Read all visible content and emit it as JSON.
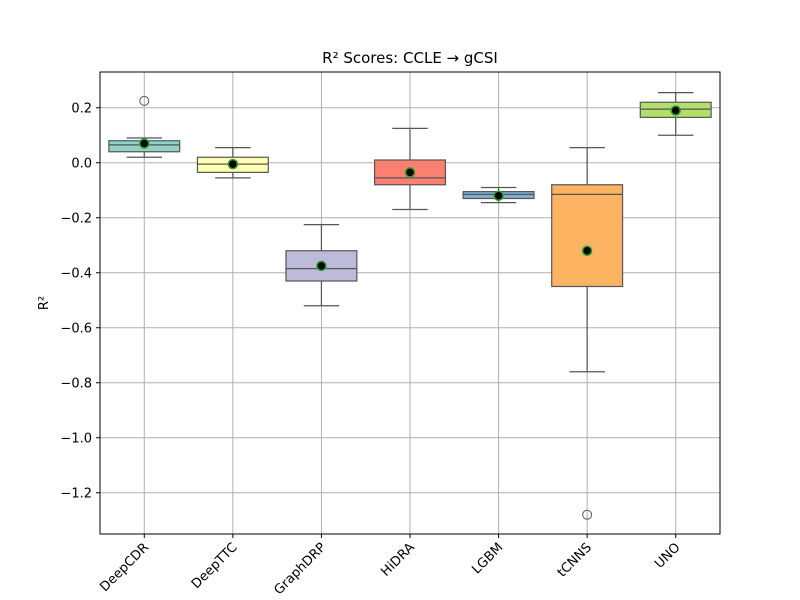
{
  "chart_data": {
    "type": "box",
    "title": "R² Scores: CCLE → gCSI",
    "xlabel": "",
    "ylabel": "R²",
    "ylim": [
      -1.35,
      0.33
    ],
    "yticks": [
      0.2,
      0.0,
      -0.2,
      -0.4,
      -0.6,
      -0.8,
      -1.0,
      -1.2
    ],
    "ytick_labels": [
      "0.2",
      "0.0",
      "−0.2",
      "−0.4",
      "−0.6",
      "−0.8",
      "−1.0",
      "−1.2"
    ],
    "grid": true,
    "categories": [
      "DeepCDR",
      "DeepTTC",
      "GraphDRP",
      "HiDRA",
      "LGBM",
      "tCNNS",
      "UNO"
    ],
    "boxes": [
      {
        "label": "DeepCDR",
        "color": "#8dd3c7",
        "whisker_low": 0.02,
        "q1": 0.04,
        "median": 0.065,
        "q3": 0.08,
        "whisker_high": 0.09,
        "mean": 0.07,
        "outliers": [
          0.225
        ]
      },
      {
        "label": "DeepTTC",
        "color": "#ffffb3",
        "whisker_low": -0.055,
        "q1": -0.035,
        "median": -0.005,
        "q3": 0.02,
        "whisker_high": 0.055,
        "mean": -0.005,
        "outliers": []
      },
      {
        "label": "GraphDRP",
        "color": "#bebada",
        "whisker_low": -0.52,
        "q1": -0.43,
        "median": -0.385,
        "q3": -0.32,
        "whisker_high": -0.225,
        "mean": -0.375,
        "outliers": []
      },
      {
        "label": "HiDRA",
        "color": "#fb8072",
        "whisker_low": -0.17,
        "q1": -0.08,
        "median": -0.055,
        "q3": 0.01,
        "whisker_high": 0.125,
        "mean": -0.035,
        "outliers": []
      },
      {
        "label": "LGBM",
        "color": "#80b1d3",
        "whisker_low": -0.145,
        "q1": -0.13,
        "median": -0.115,
        "q3": -0.105,
        "whisker_high": -0.09,
        "mean": -0.12,
        "outliers": []
      },
      {
        "label": "tCNNS",
        "color": "#fdb462",
        "whisker_low": -0.76,
        "q1": -0.45,
        "median": -0.115,
        "q3": -0.08,
        "whisker_high": 0.055,
        "mean": -0.32,
        "outliers": [
          -1.28
        ]
      },
      {
        "label": "UNO",
        "color": "#b3de69",
        "whisker_low": 0.1,
        "q1": 0.165,
        "median": 0.195,
        "q3": 0.22,
        "whisker_high": 0.255,
        "mean": 0.19,
        "outliers": []
      }
    ]
  }
}
